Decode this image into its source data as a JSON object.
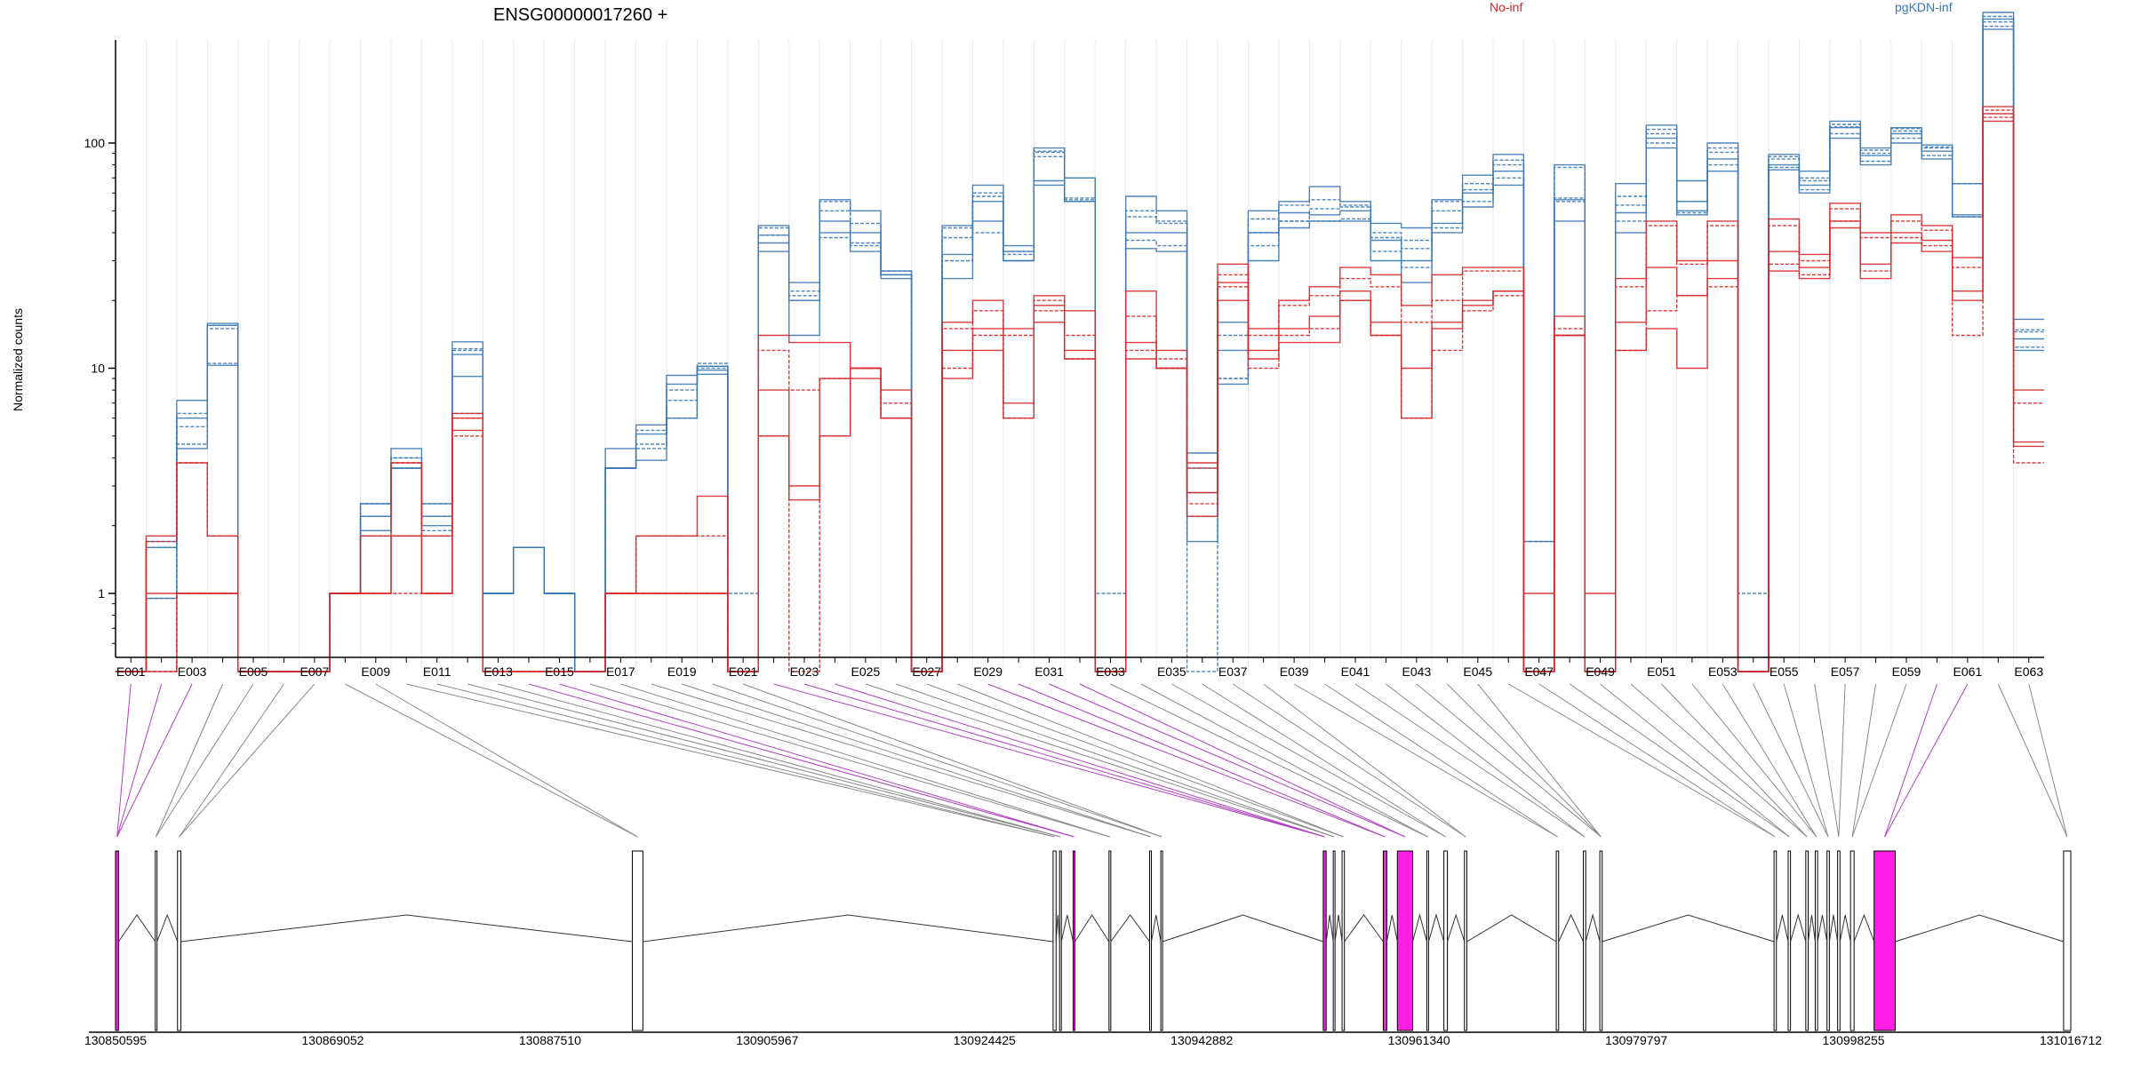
{
  "colors": {
    "no_inf": "#d62728",
    "pgkdn_inf": "#3a78b5",
    "exon_highlight": "#ff1ee6",
    "exon_default": "#d3d3d3",
    "axis": "#000000"
  },
  "chart_data": {
    "type": "line",
    "title": "ENSG00000017260 +",
    "ylabel": "Normalized counts",
    "y_scale": "log",
    "y_ticks": [
      1,
      10,
      100
    ],
    "grid": false,
    "legend": [
      {
        "name": "No-inf",
        "color": "#d62728",
        "position": "top-center"
      },
      {
        "name": "pgKDN-inf",
        "color": "#3a78b5",
        "position": "top-right"
      }
    ],
    "exon_labels": [
      "E001",
      "E003",
      "E005",
      "E007",
      "E009",
      "E011",
      "E013",
      "E015",
      "E017",
      "E019",
      "E021",
      "E023",
      "E025",
      "E027",
      "E029",
      "E031",
      "E033",
      "E035",
      "E037",
      "E039",
      "E041",
      "E043",
      "E045",
      "E047",
      "E049",
      "E051",
      "E053",
      "E055",
      "E057",
      "E059",
      "E061",
      "E063"
    ],
    "n_exons": 63,
    "floor_value": 0.45,
    "series": [
      {
        "name": "pgKDN-inf",
        "group": "pgKDN-inf",
        "values": [
          0.45,
          1.6,
          7.2,
          15.8,
          0.45,
          0.45,
          0.45,
          1.0,
          2.5,
          4.4,
          2.5,
          13.1,
          1.0,
          1.6,
          1.0,
          0.45,
          4.4,
          5.6,
          9.3,
          10.2,
          0.45,
          43,
          24,
          56,
          50,
          27,
          0.45,
          43,
          65,
          35,
          95,
          70,
          0.45,
          58,
          50,
          4.2,
          16,
          50,
          55,
          64,
          55,
          44,
          42,
          56,
          72,
          89,
          1.7,
          80,
          0.45,
          66,
          120,
          68,
          100,
          0.45,
          89,
          75,
          125,
          95,
          117,
          98,
          66,
          380,
          16.5
        ]
      },
      {
        "name": "pgKDN-inf",
        "group": "pgKDN-inf",
        "values": [
          0.45,
          1.6,
          6.3,
          15.5,
          0.45,
          0.45,
          0.45,
          1.0,
          2.5,
          4.0,
          1.9,
          12.2,
          1.0,
          1.6,
          1.0,
          0.45,
          3.6,
          4.4,
          7.2,
          10.2,
          0.45,
          39,
          22,
          55,
          44,
          27,
          0.45,
          38,
          58,
          33,
          91,
          57,
          0.45,
          47,
          44,
          3.6,
          14,
          46,
          53,
          56,
          53,
          38,
          37,
          55,
          66,
          84,
          1.7,
          57,
          0.45,
          53,
          110,
          55,
          91,
          0.45,
          87,
          70,
          121,
          90,
          116,
          96,
          66,
          365,
          14.8
        ]
      },
      {
        "name": "pgKDN-inf",
        "group": "pgKDN-inf",
        "values": [
          0.45,
          0.95,
          4.4,
          10.3,
          0.45,
          0.45,
          0.45,
          1.0,
          1.9,
          3.6,
          2.2,
          9.2,
          1.0,
          1.6,
          1.0,
          0.45,
          3.6,
          3.9,
          6.0,
          9.4,
          0.45,
          36,
          20,
          40,
          40,
          26,
          0.45,
          32,
          45,
          30,
          68,
          55,
          0.45,
          40,
          40,
          2.8,
          12,
          40,
          49,
          48,
          50,
          37,
          30,
          44,
          60,
          75,
          0.45,
          56,
          0.45,
          49,
          105,
          50,
          85,
          0.45,
          80,
          65,
          117,
          88,
          110,
          92,
          48,
          355,
          13.5
        ]
      },
      {
        "name": "pgKDN-inf",
        "group": "pgKDN-inf",
        "values": [
          0.45,
          0.95,
          5.5,
          15.0,
          0.45,
          0.45,
          0.45,
          1.0,
          2.2,
          4.0,
          2.2,
          12.0,
          1.0,
          1.6,
          1.0,
          0.45,
          3.6,
          5.3,
          8.0,
          10.0,
          0.45,
          42,
          21,
          50,
          35,
          26,
          0.45,
          30,
          60,
          32,
          87,
          56,
          0.45,
          37,
          35,
          2.2,
          9,
          35,
          45,
          45,
          46,
          33,
          28,
          42,
          55,
          70,
          0.45,
          55,
          0.45,
          45,
          100,
          49,
          80,
          0.45,
          78,
          62,
          110,
          83,
          105,
          88,
          47,
          330,
          12.4
        ]
      },
      {
        "name": "pgKDN-inf",
        "group": "pgKDN-inf",
        "values": [
          0.45,
          1.7,
          6.0,
          15.5,
          0.45,
          0.45,
          0.45,
          1.0,
          2.2,
          3.6,
          2.0,
          11.5,
          1.0,
          1.6,
          1.0,
          0.45,
          3.6,
          5.1,
          8.5,
          9.8,
          0.45,
          33,
          14,
          45,
          33,
          25,
          0.45,
          25,
          55,
          30,
          65,
          55,
          0.45,
          34,
          33,
          1.7,
          8.5,
          30,
          42,
          45,
          45,
          30,
          24,
          40,
          52,
          65,
          0.45,
          45,
          0.45,
          40,
          95,
          48,
          75,
          0.45,
          76,
          60,
          105,
          80,
          100,
          85,
          47,
          320,
          12.0
        ]
      },
      {
        "name": "pgKDN-inf",
        "group": "pgKDN-inf",
        "values": [
          0.45,
          0.45,
          4.6,
          10.5,
          0.45,
          0.45,
          0.45,
          1.0,
          2.5,
          3.6,
          2.5,
          6.3,
          1.0,
          1.6,
          1.0,
          0.45,
          3.6,
          4.6,
          6.0,
          10.5,
          1.0,
          39,
          20,
          38,
          36,
          26,
          0.45,
          42,
          40,
          33,
          92,
          70,
          1.0,
          50,
          45,
          0.45,
          9,
          40,
          45,
          51,
          52,
          40,
          34,
          50,
          62,
          80,
          0.45,
          78,
          0.45,
          58,
          115,
          55,
          95,
          1.0,
          85,
          68,
          118,
          93,
          113,
          95,
          66,
          345,
          14.5
        ]
      },
      {
        "name": "No-inf",
        "group": "No-inf",
        "values": [
          0.45,
          1.8,
          3.8,
          1.8,
          0.45,
          0.45,
          0.45,
          1.0,
          1.8,
          3.8,
          1.8,
          6.3,
          0.45,
          0.45,
          0.45,
          0.45,
          1.0,
          1.8,
          1.8,
          2.7,
          0.45,
          14,
          13,
          13,
          10,
          8,
          0.45,
          16,
          20,
          15,
          21,
          18,
          0.45,
          22,
          12,
          3.8,
          29,
          15,
          20,
          23,
          28,
          26,
          19,
          26,
          28,
          28,
          1.0,
          17,
          1.0,
          25,
          45,
          30,
          45,
          0.45,
          46,
          32,
          54,
          40,
          48,
          43,
          31,
          145,
          8
        ]
      },
      {
        "name": "No-inf",
        "group": "No-inf",
        "values": [
          0.45,
          1.7,
          3.8,
          1.8,
          0.45,
          0.45,
          0.45,
          1.0,
          1.8,
          3.8,
          1.8,
          6.0,
          0.45,
          0.45,
          0.45,
          0.45,
          1.0,
          1.8,
          1.8,
          1.8,
          0.45,
          12,
          8,
          9,
          10,
          7,
          0.45,
          15,
          18,
          14,
          20,
          14,
          0.45,
          17,
          11,
          3.6,
          26,
          14,
          19,
          21,
          25,
          23,
          16,
          20,
          27,
          27,
          0.45,
          15,
          0.45,
          23,
          43,
          29,
          43,
          0.45,
          43,
          30,
          51,
          38,
          45,
          41,
          28,
          140,
          7
        ]
      },
      {
        "name": "No-inf",
        "group": "No-inf",
        "values": [
          0.45,
          1.0,
          1.0,
          1.0,
          0.45,
          0.45,
          0.45,
          1.0,
          1.0,
          1.8,
          1.0,
          5.3,
          0.45,
          0.45,
          0.45,
          0.45,
          1.0,
          1.0,
          1.0,
          1.0,
          0.45,
          8,
          2.6,
          9,
          10,
          6,
          0.45,
          12,
          15,
          7,
          19,
          12,
          0.45,
          13,
          10,
          2.8,
          24,
          11,
          15,
          17,
          22,
          16,
          6,
          16,
          19,
          22,
          0.45,
          14,
          0.45,
          16,
          28,
          21,
          30,
          0.45,
          33,
          28,
          45,
          29,
          40,
          37,
          22,
          135,
          4.7
        ]
      },
      {
        "name": "No-inf",
        "group": "No-inf",
        "values": [
          0.45,
          0.45,
          1.0,
          1.0,
          0.45,
          0.45,
          0.45,
          1.0,
          1.0,
          1.0,
          1.0,
          5.0,
          0.45,
          0.45,
          0.45,
          0.45,
          1.0,
          1.0,
          1.0,
          1.0,
          0.45,
          5,
          0.45,
          5,
          10,
          6,
          0.45,
          10,
          14,
          6,
          18,
          11,
          0.45,
          12,
          10,
          2.5,
          23,
          10,
          14,
          15,
          20,
          14,
          6,
          12,
          18,
          21,
          0.45,
          14,
          0.45,
          12,
          18,
          21,
          23,
          0.45,
          29,
          26,
          45,
          27,
          38,
          35,
          14,
          130,
          3.8
        ]
      },
      {
        "name": "No-inf",
        "group": "No-inf",
        "values": [
          0.45,
          0.45,
          1.0,
          1.0,
          0.45,
          0.45,
          0.45,
          1.0,
          1.0,
          1.8,
          1.0,
          6.0,
          0.45,
          0.45,
          0.45,
          0.45,
          1.0,
          1.0,
          1.0,
          1.0,
          0.45,
          5,
          3,
          5,
          9,
          6,
          0.45,
          9,
          12,
          6,
          16,
          11,
          0.45,
          11,
          10,
          2.2,
          20,
          12,
          13,
          13,
          20,
          14,
          10,
          15,
          20,
          22,
          0.45,
          14,
          0.45,
          12,
          15,
          10,
          25,
          0.45,
          27,
          25,
          42,
          25,
          36,
          33,
          20,
          125,
          4.5
        ]
      }
    ],
    "genomic_axis_ticks": [
      "130850595",
      "130869052",
      "130887510",
      "130905967",
      "130924425",
      "130942882",
      "130961340",
      "130979797",
      "130998255",
      "131016712"
    ],
    "genomic_start": 130850595,
    "genomic_end": 131016712,
    "exon_track": [
      {
        "start": 130850595,
        "end": 130850850,
        "highlight": true
      },
      {
        "start": 130853970,
        "end": 130854070,
        "highlight": false
      },
      {
        "start": 130855860,
        "end": 130856150,
        "highlight": false
      },
      {
        "start": 130894500,
        "end": 130895400,
        "highlight": false
      },
      {
        "start": 130930250,
        "end": 130930500,
        "highlight": false
      },
      {
        "start": 130930800,
        "end": 130930950,
        "highlight": false
      },
      {
        "start": 130931950,
        "end": 130932100,
        "highlight": true
      },
      {
        "start": 130935000,
        "end": 130935120,
        "highlight": false
      },
      {
        "start": 130938450,
        "end": 130938600,
        "highlight": false
      },
      {
        "start": 130939400,
        "end": 130939550,
        "highlight": false
      },
      {
        "start": 130953200,
        "end": 130953450,
        "highlight": true
      },
      {
        "start": 130954050,
        "end": 130954200,
        "highlight": false
      },
      {
        "start": 130954800,
        "end": 130955000,
        "highlight": false
      },
      {
        "start": 130958300,
        "end": 130958600,
        "highlight": true
      },
      {
        "start": 130959500,
        "end": 130960800,
        "highlight": true
      },
      {
        "start": 130962000,
        "end": 130962150,
        "highlight": false
      },
      {
        "start": 130963450,
        "end": 130963750,
        "highlight": false
      },
      {
        "start": 130965200,
        "end": 130965400,
        "highlight": false
      },
      {
        "start": 130973000,
        "end": 130973200,
        "highlight": false
      },
      {
        "start": 130975300,
        "end": 130975500,
        "highlight": false
      },
      {
        "start": 130976700,
        "end": 130976900,
        "highlight": false
      },
      {
        "start": 130991500,
        "end": 130991700,
        "highlight": false
      },
      {
        "start": 130992700,
        "end": 130992900,
        "highlight": false
      },
      {
        "start": 130994200,
        "end": 130994400,
        "highlight": false
      },
      {
        "start": 130995000,
        "end": 130995200,
        "highlight": false
      },
      {
        "start": 130996000,
        "end": 130996200,
        "highlight": false
      },
      {
        "start": 130996900,
        "end": 130997100,
        "highlight": false
      },
      {
        "start": 130998000,
        "end": 130998300,
        "highlight": false
      },
      {
        "start": 131000000,
        "end": 131001800,
        "highlight": true
      },
      {
        "start": 131016100,
        "end": 131016712,
        "highlight": false
      }
    ]
  }
}
